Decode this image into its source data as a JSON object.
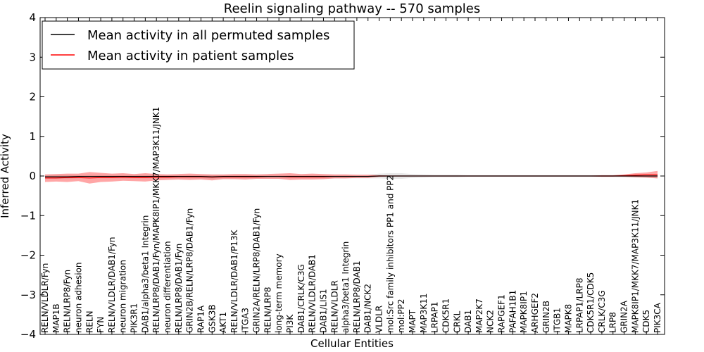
{
  "chart_data": {
    "type": "line",
    "title": "Reelin signaling pathway -- 570 samples",
    "xlabel": "Cellular Entities",
    "ylabel": "Inferred Activity",
    "ylim": [
      -4,
      4
    ],
    "yticks": [
      "4",
      "3",
      "2",
      "1",
      "0",
      "−1",
      "−2",
      "−3",
      "−4"
    ],
    "ytick_values": [
      4,
      3,
      2,
      1,
      0,
      -1,
      -2,
      -3,
      -4
    ],
    "grid": false,
    "legend_position": "top-left",
    "categories": [
      "RELN/VLDLR/Fyn",
      "MAP1B",
      "RELN/LRP8/Fyn",
      "neuron adhesion",
      "RELN",
      "FYN",
      "RELN/VLDLR/DAB1/Fyn",
      "neuron migration",
      "PIK3R1",
      "DAB1/alpha3/beta1 Integrin",
      "RELN/LRP8/DAB1/Fyn/MAPK8IP1/MKK7/MAP3K11/JNK1",
      "neuron differentiation",
      "RELN/LRP8/DAB1/Fyn",
      "GRIN2B/RELN/LRP8/DAB1/Fyn",
      "RAP1A",
      "GSK3B",
      "AKT1",
      "RELN/VLDLR/DAB1/P13K",
      "ITGA3",
      "GRIN2A/RELN/LRP8/DAB1/Fyn",
      "RELN/LRP8",
      "long-term memory",
      "PI3K",
      "DAB1/CRLK/C3G",
      "RELN/VLDLR/DAB1",
      "DAB1/LIS1",
      "RELN/VLDLR",
      "alpha3/beta1 Integrin",
      "RELN/LRP8/DAB1",
      "DAB1/NCK2",
      "VLDLR",
      "mol:Src family inhibitors PP1 and PP2",
      "mol:PP2",
      "MAPT",
      "MAP3K11",
      "LRPAP1",
      "CDK5R1",
      "CRKL",
      "DAB1",
      "MAP2K7",
      "NCK2",
      "RAPGEF1",
      "PAFAH1B1",
      "MAPK8IP1",
      "ARHGEF2",
      "GRIN2B",
      "ITGB1",
      "MAPK8",
      "LRPAP1/LRP8",
      "CDK5R1/CDK5",
      "CRLK/C3G",
      "LRP8",
      "GRIN2A",
      "MAPK8IP1/MKK7/MAP3K11/JNK1",
      "CDK5",
      "PIK3CA"
    ],
    "series": [
      {
        "name": "Mean activity in all permuted samples",
        "color": "#000000",
        "values": [
          -0.02,
          -0.02,
          -0.02,
          -0.01,
          -0.01,
          -0.01,
          -0.01,
          -0.01,
          -0.01,
          -0.01,
          -0.01,
          -0.01,
          -0.01,
          -0.01,
          -0.01,
          -0.02,
          -0.01,
          -0.01,
          -0.01,
          -0.01,
          -0.01,
          -0.01,
          -0.01,
          -0.01,
          -0.01,
          -0.01,
          -0.01,
          -0.01,
          -0.01,
          -0.01,
          0.0,
          0.0,
          0.0,
          0.0,
          0.0,
          0.0,
          0.0,
          0.0,
          0.0,
          0.0,
          0.0,
          0.0,
          0.0,
          0.0,
          0.0,
          0.0,
          0.0,
          0.0,
          0.0,
          0.0,
          0.0,
          0.0,
          0.0,
          0.0,
          0.0,
          0.0
        ],
        "band_upper": [
          0.03,
          0.03,
          0.03,
          0.03,
          0.03,
          0.03,
          0.03,
          0.03,
          0.03,
          0.03,
          0.03,
          0.03,
          0.03,
          0.03,
          0.03,
          0.03,
          0.03,
          0.03,
          0.03,
          0.03,
          0.03,
          0.03,
          0.03,
          0.03,
          0.03,
          0.03,
          0.03,
          0.03,
          0.03,
          0.03,
          0.06,
          0.07,
          0.07,
          0.05,
          0.04,
          0.03,
          0.03,
          0.03,
          0.02,
          0.02,
          0.02,
          0.02,
          0.02,
          0.02,
          0.02,
          0.02,
          0.02,
          0.02,
          0.02,
          0.02,
          0.02,
          0.02,
          0.02,
          0.02,
          0.02,
          0.02
        ],
        "band_lower": [
          -0.07,
          -0.07,
          -0.07,
          -0.06,
          -0.06,
          -0.06,
          -0.06,
          -0.06,
          -0.06,
          -0.06,
          -0.06,
          -0.06,
          -0.06,
          -0.06,
          -0.06,
          -0.07,
          -0.06,
          -0.06,
          -0.06,
          -0.06,
          -0.06,
          -0.06,
          -0.06,
          -0.06,
          -0.06,
          -0.06,
          -0.06,
          -0.06,
          -0.06,
          -0.06,
          -0.06,
          -0.07,
          -0.07,
          -0.05,
          -0.04,
          -0.03,
          -0.03,
          -0.03,
          -0.02,
          -0.02,
          -0.02,
          -0.02,
          -0.02,
          -0.02,
          -0.02,
          -0.02,
          -0.02,
          -0.02,
          -0.02,
          -0.02,
          -0.02,
          -0.02,
          -0.03,
          -0.04,
          -0.05,
          -0.06
        ]
      },
      {
        "name": "Mean activity in patient samples",
        "color": "#ff0000",
        "values": [
          -0.05,
          -0.05,
          -0.04,
          -0.04,
          -0.05,
          -0.04,
          -0.04,
          -0.03,
          -0.04,
          -0.04,
          -0.03,
          -0.03,
          -0.02,
          -0.02,
          -0.02,
          -0.03,
          -0.02,
          -0.02,
          -0.02,
          -0.02,
          -0.01,
          -0.01,
          -0.02,
          -0.02,
          -0.02,
          -0.02,
          -0.01,
          -0.01,
          -0.01,
          -0.01,
          0.0,
          0.0,
          0.0,
          0.0,
          0.0,
          0.0,
          0.0,
          0.0,
          0.0,
          0.0,
          0.0,
          0.0,
          0.0,
          0.0,
          0.0,
          0.0,
          0.0,
          0.0,
          0.0,
          0.0,
          0.0,
          0.0,
          0.01,
          0.02,
          0.03,
          0.03
        ],
        "band_upper": [
          0.04,
          0.05,
          0.06,
          0.06,
          0.1,
          0.08,
          0.06,
          0.07,
          0.05,
          0.07,
          0.05,
          0.04,
          0.05,
          0.06,
          0.05,
          0.04,
          0.04,
          0.05,
          0.05,
          0.04,
          0.05,
          0.06,
          0.07,
          0.05,
          0.06,
          0.05,
          0.04,
          0.04,
          0.03,
          0.03,
          0.02,
          0.01,
          0.01,
          0.01,
          0.01,
          0.01,
          0.01,
          0.01,
          0.01,
          0.01,
          0.01,
          0.01,
          0.01,
          0.01,
          0.01,
          0.01,
          0.01,
          0.01,
          0.01,
          0.01,
          0.02,
          0.02,
          0.04,
          0.07,
          0.09,
          0.13
        ],
        "band_lower": [
          -0.15,
          -0.14,
          -0.15,
          -0.13,
          -0.19,
          -0.15,
          -0.14,
          -0.12,
          -0.13,
          -0.14,
          -0.11,
          -0.1,
          -0.09,
          -0.1,
          -0.09,
          -0.11,
          -0.08,
          -0.08,
          -0.09,
          -0.07,
          -0.07,
          -0.07,
          -0.1,
          -0.09,
          -0.09,
          -0.08,
          -0.06,
          -0.06,
          -0.05,
          -0.05,
          -0.02,
          -0.01,
          -0.01,
          -0.01,
          -0.01,
          -0.01,
          -0.01,
          -0.01,
          -0.01,
          -0.01,
          -0.01,
          -0.01,
          -0.01,
          -0.01,
          -0.01,
          -0.01,
          -0.01,
          -0.01,
          -0.01,
          -0.01,
          -0.02,
          -0.02,
          -0.02,
          -0.03,
          -0.04,
          -0.06
        ]
      }
    ]
  }
}
